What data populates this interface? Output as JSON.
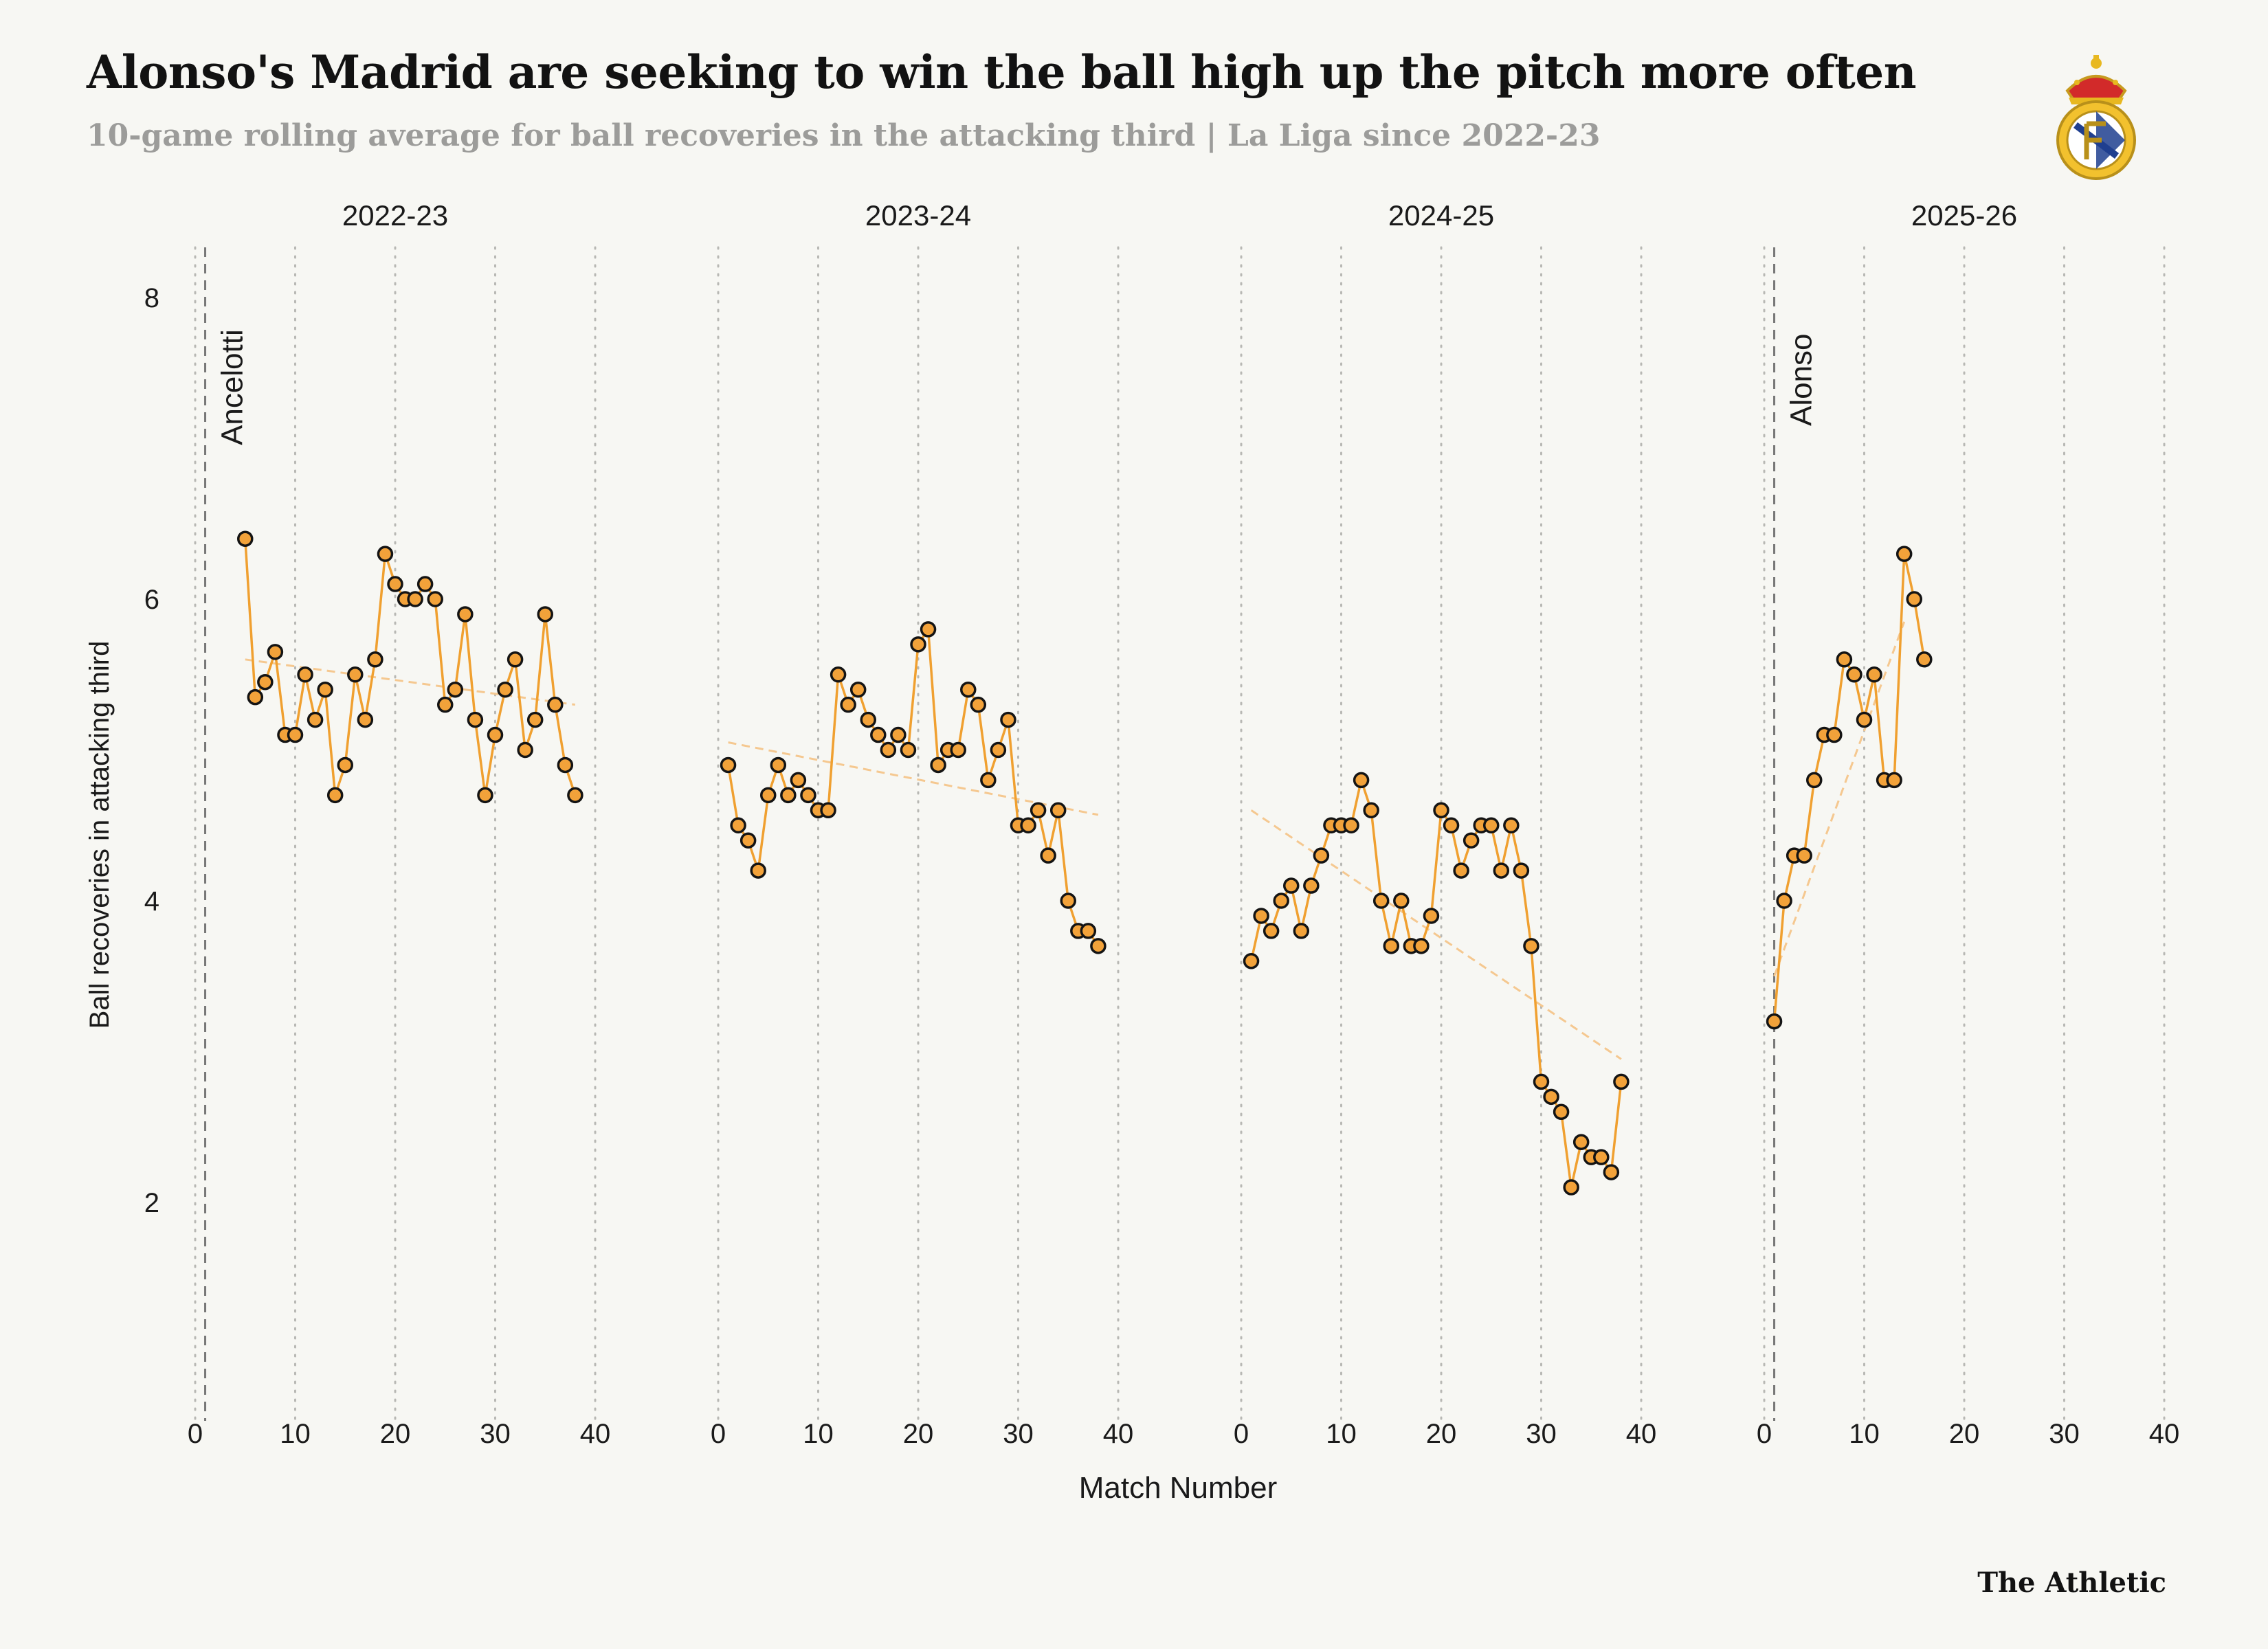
{
  "title": "Alonso's Madrid are seeking to win the ball high up the pitch more often",
  "subtitle": "10-game rolling average for ball recoveries in the attacking third | La Liga since 2022-23",
  "brand": "The Athletic",
  "colors": {
    "line": "#f0a030",
    "marker": "#f2a23a",
    "trend": "#f5c890",
    "grid": "#b8b8b4"
  },
  "chart_data": {
    "type": "line",
    "ylabel": "Ball recoveries in attacking third",
    "xlabel": "Match Number",
    "ylim": [
      0.8,
      8.4
    ],
    "yticks": [
      2,
      4,
      6,
      8
    ],
    "xlim": [
      0,
      40
    ],
    "xticks": [
      0,
      10,
      20,
      30,
      40
    ],
    "panels": [
      {
        "season": "2022-23",
        "start_x": 5,
        "values": [
          6.4,
          5.35,
          5.45,
          5.65,
          5.1,
          5.1,
          5.5,
          5.2,
          5.4,
          4.7,
          4.9,
          5.5,
          5.2,
          5.6,
          6.3,
          6.1,
          6.0,
          6.0,
          6.1,
          6.0,
          5.3,
          5.4,
          5.9,
          5.2,
          4.7,
          5.1,
          5.4,
          5.6,
          5.0,
          5.2,
          5.9,
          5.3,
          4.9,
          4.7
        ],
        "trend": [
          [
            5,
            5.6
          ],
          [
            38,
            5.3
          ]
        ],
        "manager_change": {
          "x": 1,
          "label": "Ancelotti"
        }
      },
      {
        "season": "2023-24",
        "start_x": 1,
        "values": [
          4.9,
          4.5,
          4.4,
          4.2,
          4.7,
          4.9,
          4.7,
          4.8,
          4.7,
          4.6,
          4.6,
          5.5,
          5.3,
          5.4,
          5.2,
          5.1,
          5.0,
          5.1,
          5.0,
          5.7,
          5.8,
          4.9,
          5.0,
          5.0,
          5.4,
          5.3,
          4.8,
          5.0,
          5.2,
          4.5,
          4.5,
          4.6,
          4.3,
          4.6,
          4.0,
          3.8,
          3.8,
          3.7
        ],
        "trend": [
          [
            1,
            5.05
          ],
          [
            38,
            4.57
          ]
        ]
      },
      {
        "season": "2024-25",
        "start_x": 1,
        "values": [
          3.6,
          3.9,
          3.8,
          4.0,
          4.1,
          3.8,
          4.1,
          4.3,
          4.5,
          4.5,
          4.5,
          4.8,
          4.6,
          4.0,
          3.7,
          4.0,
          3.7,
          3.7,
          3.9,
          4.6,
          4.5,
          4.2,
          4.4,
          4.5,
          4.5,
          4.2,
          4.5,
          4.2,
          3.7,
          2.8,
          2.7,
          2.6,
          2.1,
          2.4,
          2.3,
          2.3,
          2.2,
          2.8
        ],
        "trend": [
          [
            1,
            4.6
          ],
          [
            38,
            2.95
          ]
        ]
      },
      {
        "season": "2025-26",
        "start_x": 1,
        "values": [
          3.2,
          4.0,
          4.3,
          4.3,
          4.8,
          5.1,
          5.1,
          5.6,
          5.5,
          5.2,
          5.5,
          4.8,
          4.8,
          6.3,
          6.0,
          5.6
        ],
        "trend": [
          [
            1,
            3.5
          ],
          [
            14,
            5.85
          ]
        ],
        "manager_change": {
          "x": 1,
          "label": "Alonso"
        }
      }
    ]
  }
}
